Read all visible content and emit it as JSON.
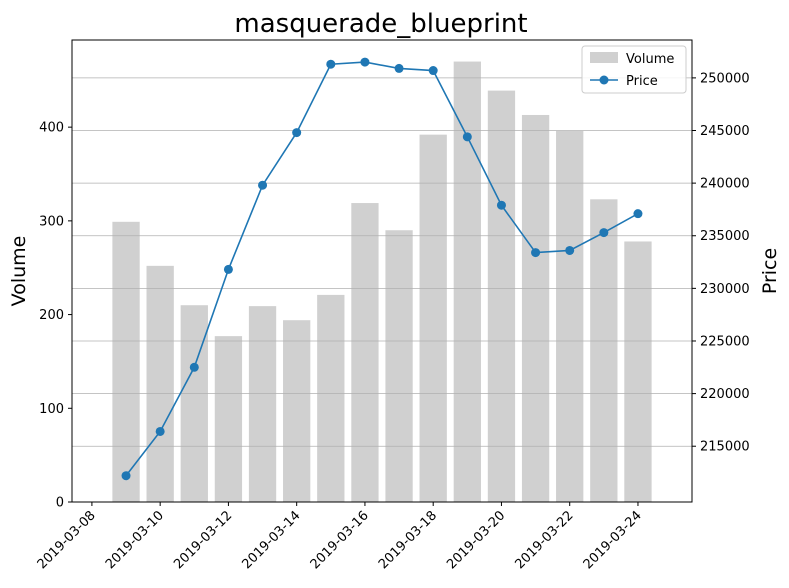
{
  "chart_data": {
    "type": "bar",
    "title": "masquerade_blueprint",
    "xlabel": "",
    "y_left_label": "Volume",
    "y_right_label": "Price",
    "x_ticks": [
      "2019-03-08",
      "2019-03-10",
      "2019-03-12",
      "2019-03-14",
      "2019-03-16",
      "2019-03-18",
      "2019-03-20",
      "2019-03-22",
      "2019-03-24"
    ],
    "y_left_ticks": [
      0,
      100,
      200,
      300,
      400
    ],
    "y_right_ticks": [
      215000,
      220000,
      225000,
      230000,
      235000,
      240000,
      245000,
      250000
    ],
    "y_left_lim": [
      0,
      493
    ],
    "y_right_lim": [
      209700,
      253600
    ],
    "x_lim": [
      "2019-03-07T10:00",
      "2019-03-25T14:00"
    ],
    "grid": "horizontal, right axis",
    "legend_position": "top-right",
    "dates": [
      "2019-03-09",
      "2019-03-10",
      "2019-03-11",
      "2019-03-12",
      "2019-03-13",
      "2019-03-14",
      "2019-03-15",
      "2019-03-16",
      "2019-03-17",
      "2019-03-18",
      "2019-03-19",
      "2019-03-20",
      "2019-03-21",
      "2019-03-22",
      "2019-03-23",
      "2019-03-24"
    ],
    "series": [
      {
        "name": "Volume",
        "type": "bar",
        "axis": "left",
        "color": "#d0d0d0",
        "values": [
          299,
          252,
          210,
          177,
          209,
          194,
          221,
          319,
          290,
          392,
          470,
          439,
          413,
          396,
          323,
          278
        ]
      },
      {
        "name": "Price",
        "type": "line",
        "axis": "right",
        "color": "#1f77b4",
        "values": [
          212200,
          216400,
          222500,
          231800,
          239800,
          244800,
          251300,
          251500,
          250900,
          250700,
          244400,
          237900,
          233400,
          233600,
          235300,
          237100
        ]
      }
    ]
  }
}
